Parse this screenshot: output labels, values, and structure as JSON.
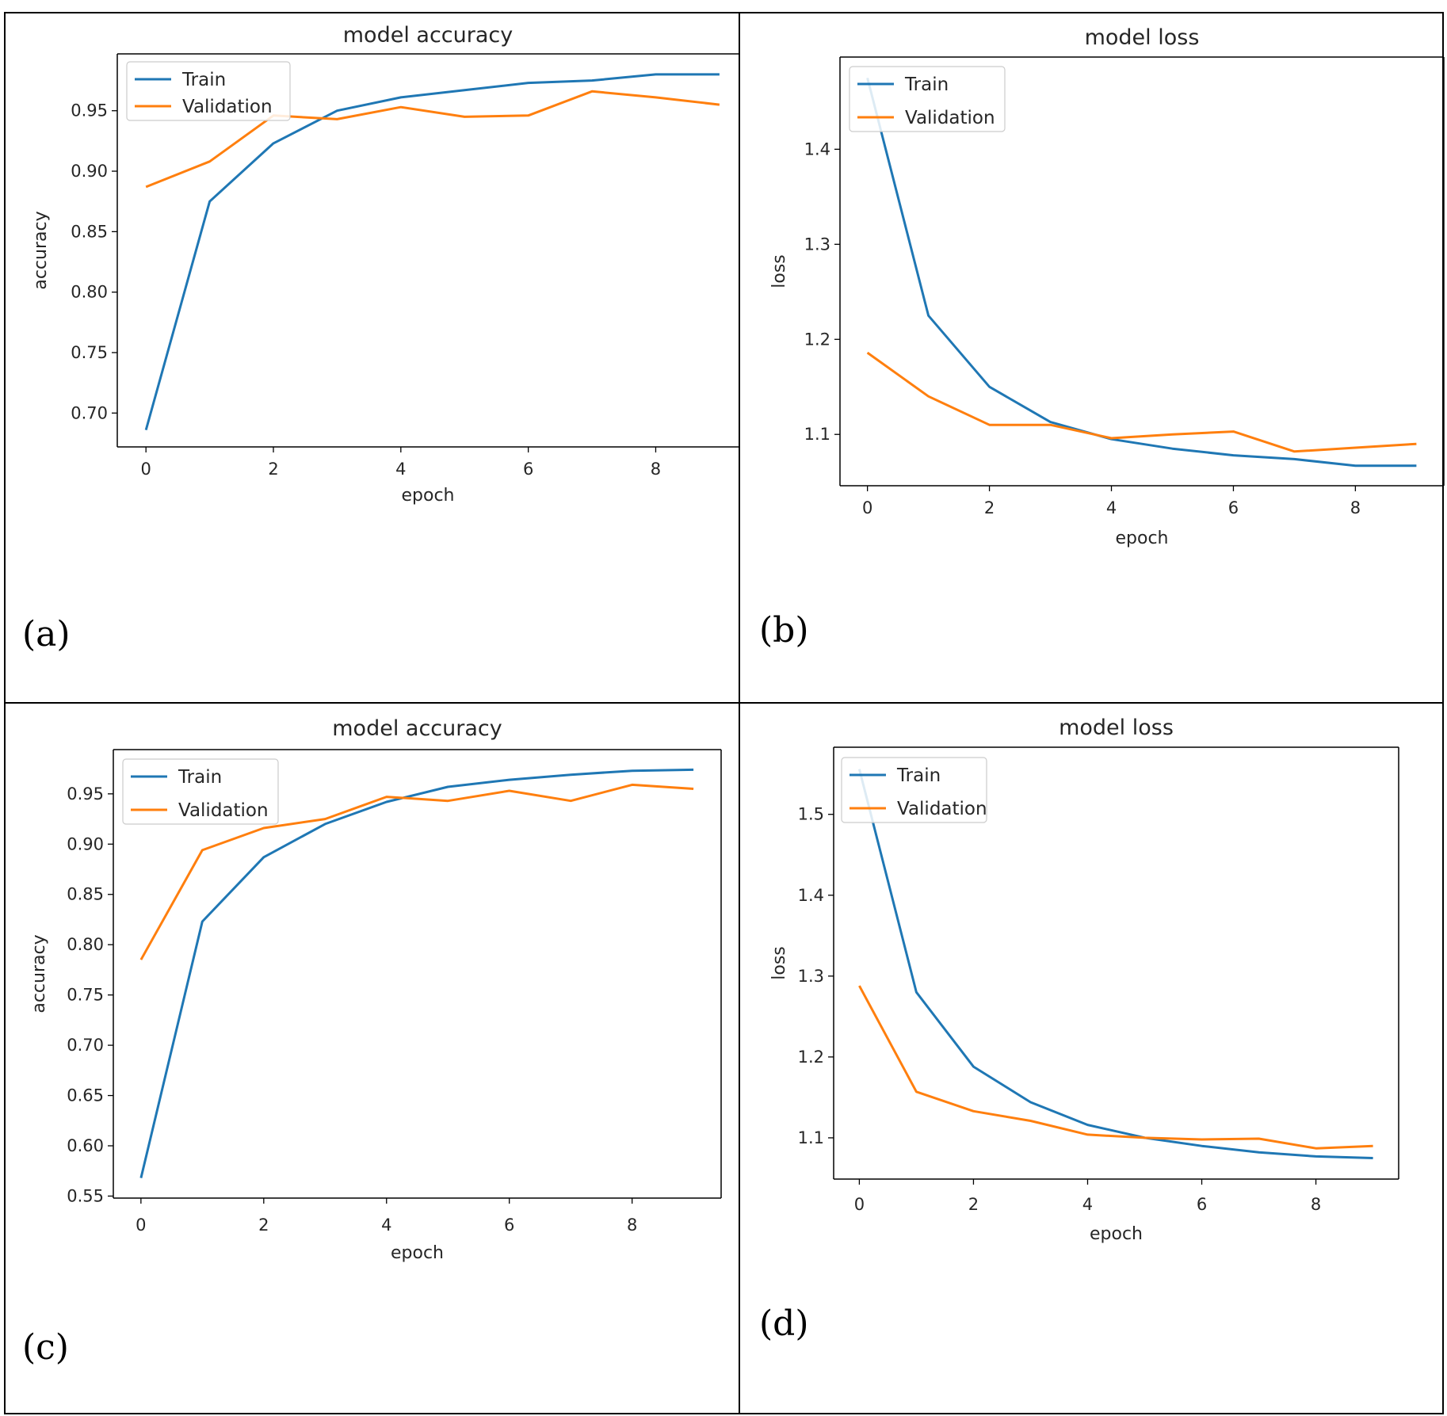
{
  "panel_labels": [
    "(a)",
    "(b)",
    "(c)",
    "(d)"
  ],
  "chart_data": [
    {
      "type": "line",
      "title": "model accuracy",
      "xlabel": "epoch",
      "ylabel": "accuracy",
      "x": [
        0,
        1,
        2,
        3,
        4,
        5,
        6,
        7,
        8,
        9
      ],
      "xlim": [
        -0.45,
        9.3
      ],
      "ylim": [
        0.672,
        0.997
      ],
      "xticks": [
        0,
        2,
        4,
        6,
        8
      ],
      "yticks": [
        0.7,
        0.75,
        0.8,
        0.85,
        0.9,
        0.95
      ],
      "ytick_labels": [
        "0.70",
        "0.75",
        "0.80",
        "0.85",
        "0.90",
        "0.95"
      ],
      "legend": "upper-left",
      "series": [
        {
          "name": "Train",
          "color": "#1f77b4",
          "values": [
            0.686,
            0.875,
            0.923,
            0.95,
            0.961,
            0.967,
            0.973,
            0.975,
            0.98,
            0.98
          ]
        },
        {
          "name": "Validation",
          "color": "#ff7f0e",
          "values": [
            0.887,
            0.908,
            0.946,
            0.943,
            0.953,
            0.945,
            0.946,
            0.966,
            0.961,
            0.955
          ]
        }
      ]
    },
    {
      "type": "line",
      "title": "model loss",
      "xlabel": "epoch",
      "ylabel": "loss",
      "x": [
        0,
        1,
        2,
        3,
        4,
        5,
        6,
        7,
        8,
        9
      ],
      "xlim": [
        -0.45,
        9.45
      ],
      "ylim": [
        1.046,
        1.497
      ],
      "xticks": [
        0,
        2,
        4,
        6,
        8
      ],
      "yticks": [
        1.1,
        1.2,
        1.3,
        1.4
      ],
      "ytick_labels": [
        "1.1",
        "1.2",
        "1.3",
        "1.4"
      ],
      "legend": "upper-left",
      "series": [
        {
          "name": "Train",
          "color": "#1f77b4",
          "values": [
            1.475,
            1.225,
            1.15,
            1.113,
            1.095,
            1.085,
            1.078,
            1.074,
            1.067,
            1.067
          ]
        },
        {
          "name": "Validation",
          "color": "#ff7f0e",
          "values": [
            1.186,
            1.14,
            1.11,
            1.11,
            1.096,
            1.1,
            1.103,
            1.082,
            1.086,
            1.09
          ]
        }
      ]
    },
    {
      "type": "line",
      "title": "model accuracy",
      "xlabel": "epoch",
      "ylabel": "accuracy",
      "x": [
        0,
        1,
        2,
        3,
        4,
        5,
        6,
        7,
        8,
        9
      ],
      "xlim": [
        -0.45,
        9.45
      ],
      "ylim": [
        0.548,
        0.994
      ],
      "xticks": [
        0,
        2,
        4,
        6,
        8
      ],
      "yticks": [
        0.55,
        0.6,
        0.65,
        0.7,
        0.75,
        0.8,
        0.85,
        0.9,
        0.95
      ],
      "ytick_labels": [
        "0.55",
        "0.60",
        "0.65",
        "0.70",
        "0.75",
        "0.80",
        "0.85",
        "0.90",
        "0.95"
      ],
      "legend": "upper-left",
      "series": [
        {
          "name": "Train",
          "color": "#1f77b4",
          "values": [
            0.568,
            0.823,
            0.887,
            0.92,
            0.942,
            0.957,
            0.964,
            0.969,
            0.973,
            0.974
          ]
        },
        {
          "name": "Validation",
          "color": "#ff7f0e",
          "values": [
            0.785,
            0.894,
            0.916,
            0.925,
            0.947,
            0.943,
            0.953,
            0.943,
            0.959,
            0.955
          ]
        }
      ]
    },
    {
      "type": "line",
      "title": "model loss",
      "xlabel": "epoch",
      "ylabel": "loss",
      "x": [
        0,
        1,
        2,
        3,
        4,
        5,
        6,
        7,
        8,
        9
      ],
      "xlim": [
        -0.45,
        9.45
      ],
      "ylim": [
        1.049,
        1.583
      ],
      "xticks": [
        0,
        2,
        4,
        6,
        8
      ],
      "yticks": [
        1.1,
        1.2,
        1.3,
        1.4,
        1.5
      ],
      "ytick_labels": [
        "1.1",
        "1.2",
        "1.3",
        "1.4",
        "1.5"
      ],
      "legend": "upper-left",
      "series": [
        {
          "name": "Train",
          "color": "#1f77b4",
          "values": [
            1.556,
            1.28,
            1.188,
            1.144,
            1.116,
            1.1,
            1.09,
            1.082,
            1.077,
            1.075
          ]
        },
        {
          "name": "Validation",
          "color": "#ff7f0e",
          "values": [
            1.288,
            1.157,
            1.133,
            1.121,
            1.104,
            1.1,
            1.098,
            1.099,
            1.087,
            1.09
          ]
        }
      ]
    }
  ]
}
